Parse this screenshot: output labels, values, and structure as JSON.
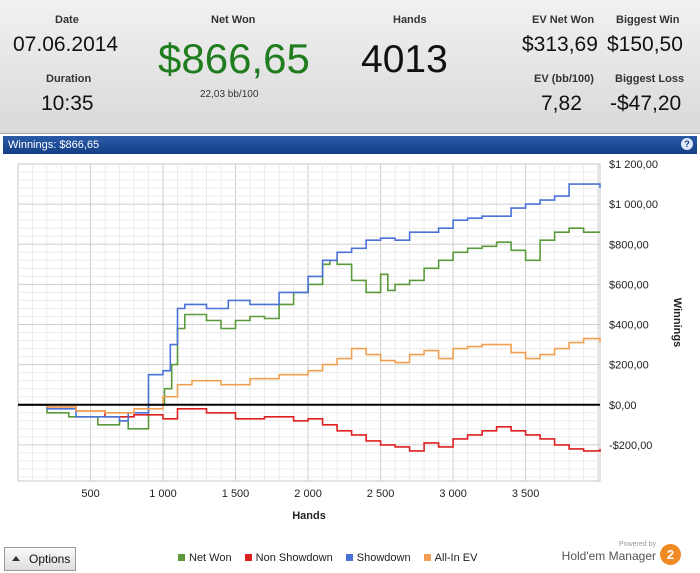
{
  "stats": {
    "date_label": "Date",
    "date_value": "07.06.2014",
    "duration_label": "Duration",
    "duration_value": "10:35",
    "net_won_label": "Net Won",
    "net_won_value": "$866,65",
    "net_won_sub": "22,03 bb/100",
    "hands_label": "Hands",
    "hands_value": "4013",
    "ev_net_won_label": "EV Net Won",
    "ev_net_won_value": "$313,69",
    "ev_bb_label": "EV (bb/100)",
    "ev_bb_value": "7,82",
    "biggest_win_label": "Biggest Win",
    "biggest_win_value": "$150,50",
    "biggest_loss_label": "Biggest Loss",
    "biggest_loss_value": "-$47,20"
  },
  "panel": {
    "title": "Winnings: $866,65",
    "help": "?"
  },
  "bottom": {
    "options_label": "Options",
    "powered_by": "Powered by",
    "brand_name": "Hold'em Manager",
    "brand_logo": "2"
  },
  "colors": {
    "net_won": "#5a9a3a",
    "non_showdown": "#dd2020",
    "showdown": "#4a72d8",
    "allin_ev": "#f0a050",
    "net_won_big": "#1f7d1f"
  },
  "chart_data": {
    "type": "line",
    "xlabel": "Hands",
    "ylabel": "Winnings",
    "xlim": [
      0,
      4013
    ],
    "ylim": [
      -380,
      1200
    ],
    "x_ticks": [
      500,
      1000,
      1500,
      2000,
      2500,
      3000,
      3500
    ],
    "x_tick_labels": [
      "500",
      "1 000",
      "1 500",
      "2 000",
      "2 500",
      "3 000",
      "3 500"
    ],
    "y_ticks": [
      1200,
      1000,
      800,
      600,
      400,
      200,
      0,
      -200
    ],
    "y_tick_labels": [
      "$1 200,00",
      "$1 000,00",
      "$800,00",
      "$600,00",
      "$400,00",
      "$200,00",
      "$0,00",
      "-$200,00"
    ],
    "grid": true,
    "legend": "bottom",
    "series": [
      {
        "name": "Net Won",
        "color": "#5a9a3a",
        "x": [
          0,
          200,
          350,
          550,
          700,
          760,
          900,
          1010,
          1060,
          1100,
          1150,
          1300,
          1400,
          1500,
          1600,
          1700,
          1800,
          1900,
          2000,
          2100,
          2150,
          2200,
          2300,
          2400,
          2500,
          2550,
          2600,
          2700,
          2800,
          2900,
          3000,
          3100,
          3200,
          3300,
          3400,
          3500,
          3600,
          3700,
          3800,
          3900,
          4013
        ],
        "values": [
          0,
          -40,
          -60,
          -100,
          -80,
          -120,
          0,
          80,
          200,
          380,
          450,
          420,
          380,
          420,
          440,
          430,
          500,
          560,
          600,
          700,
          720,
          700,
          620,
          560,
          650,
          570,
          600,
          620,
          680,
          720,
          760,
          780,
          790,
          810,
          770,
          720,
          820,
          860,
          880,
          860,
          860
        ]
      },
      {
        "name": "Non Showdown",
        "color": "#dd2020",
        "x": [
          0,
          200,
          400,
          600,
          800,
          1000,
          1100,
          1300,
          1500,
          1700,
          1900,
          2000,
          2100,
          2200,
          2300,
          2400,
          2500,
          2600,
          2700,
          2800,
          2900,
          3000,
          3100,
          3200,
          3300,
          3400,
          3500,
          3600,
          3700,
          3800,
          3900,
          4013
        ],
        "values": [
          0,
          -10,
          -30,
          -60,
          -50,
          -70,
          -20,
          -40,
          -70,
          -60,
          -80,
          -70,
          -100,
          -130,
          -150,
          -180,
          -200,
          -210,
          -230,
          -190,
          -210,
          -170,
          -150,
          -130,
          -110,
          -130,
          -150,
          -170,
          -200,
          -220,
          -230,
          -220
        ]
      },
      {
        "name": "Showdown",
        "color": "#4a72d8",
        "x": [
          0,
          200,
          400,
          700,
          760,
          900,
          1000,
          1050,
          1100,
          1150,
          1300,
          1450,
          1600,
          1800,
          2000,
          2100,
          2200,
          2300,
          2400,
          2500,
          2600,
          2700,
          2800,
          2900,
          3000,
          3100,
          3200,
          3300,
          3400,
          3500,
          3600,
          3700,
          3800,
          3900,
          4013
        ],
        "values": [
          0,
          -20,
          -60,
          -80,
          -40,
          150,
          170,
          300,
          480,
          500,
          480,
          520,
          500,
          560,
          640,
          720,
          760,
          780,
          820,
          830,
          820,
          860,
          860,
          880,
          920,
          930,
          940,
          940,
          980,
          1000,
          1020,
          1040,
          1100,
          1100,
          1080
        ]
      },
      {
        "name": "All-In EV",
        "color": "#f0a050",
        "x": [
          0,
          200,
          400,
          600,
          800,
          1000,
          1100,
          1200,
          1400,
          1600,
          1800,
          2000,
          2100,
          2200,
          2300,
          2400,
          2500,
          2600,
          2700,
          2800,
          2900,
          3000,
          3100,
          3200,
          3300,
          3400,
          3500,
          3600,
          3700,
          3800,
          3900,
          4013
        ],
        "values": [
          0,
          -10,
          -30,
          -40,
          -20,
          40,
          100,
          120,
          100,
          130,
          150,
          170,
          200,
          230,
          280,
          250,
          220,
          210,
          250,
          270,
          230,
          280,
          290,
          300,
          300,
          260,
          230,
          250,
          280,
          310,
          330,
          310
        ]
      }
    ]
  }
}
